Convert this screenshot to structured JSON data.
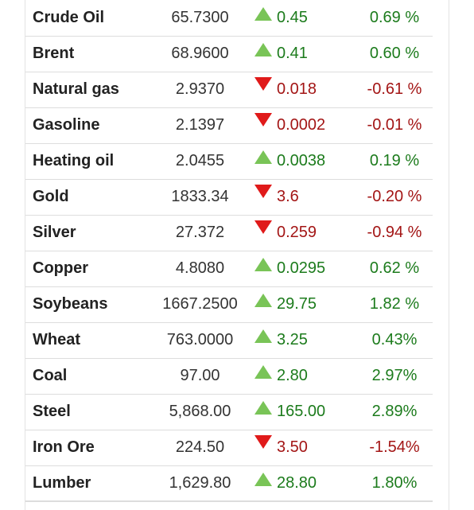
{
  "commodities": [
    {
      "name": "Crude Oil",
      "price": "65.7300",
      "direction": "up",
      "change": "0.45",
      "percent": "0.69 %"
    },
    {
      "name": "Brent",
      "price": "68.9600",
      "direction": "up",
      "change": "0.41",
      "percent": "0.60 %"
    },
    {
      "name": "Natural gas",
      "price": "2.9370",
      "direction": "down",
      "change": "0.018",
      "percent": "-0.61 %"
    },
    {
      "name": "Gasoline",
      "price": "2.1397",
      "direction": "down",
      "change": "0.0002",
      "percent": "-0.01 %"
    },
    {
      "name": "Heating oil",
      "price": "2.0455",
      "direction": "up",
      "change": "0.0038",
      "percent": "0.19 %"
    },
    {
      "name": "Gold",
      "price": "1833.34",
      "direction": "down",
      "change": "3.6",
      "percent": "-0.20 %"
    },
    {
      "name": "Silver",
      "price": "27.372",
      "direction": "down",
      "change": "0.259",
      "percent": "-0.94 %"
    },
    {
      "name": "Copper",
      "price": "4.8080",
      "direction": "up",
      "change": "0.0295",
      "percent": "0.62 %"
    },
    {
      "name": "Soybeans",
      "price": "1667.2500",
      "direction": "up",
      "change": "29.75",
      "percent": "1.82 %"
    },
    {
      "name": "Wheat",
      "price": "763.0000",
      "direction": "up",
      "change": "3.25",
      "percent": "0.43%"
    },
    {
      "name": "Coal",
      "price": "97.00",
      "direction": "up",
      "change": "2.80",
      "percent": "2.97%"
    },
    {
      "name": "Steel",
      "price": "5,868.00",
      "direction": "up",
      "change": "165.00",
      "percent": "2.89%"
    },
    {
      "name": "Iron Ore",
      "price": "224.50",
      "direction": "down",
      "change": "3.50",
      "percent": "-1.54%"
    },
    {
      "name": "Lumber",
      "price": "1,629.80",
      "direction": "up",
      "change": "28.80",
      "percent": "1.80%"
    }
  ],
  "icons": {
    "up": "triangle-up-icon",
    "down": "triangle-down-icon"
  },
  "colors": {
    "up_arrow": "#79c457",
    "down_arrow": "#e01a1a",
    "positive_text": "#1c7b1c",
    "negative_text": "#a31515"
  }
}
